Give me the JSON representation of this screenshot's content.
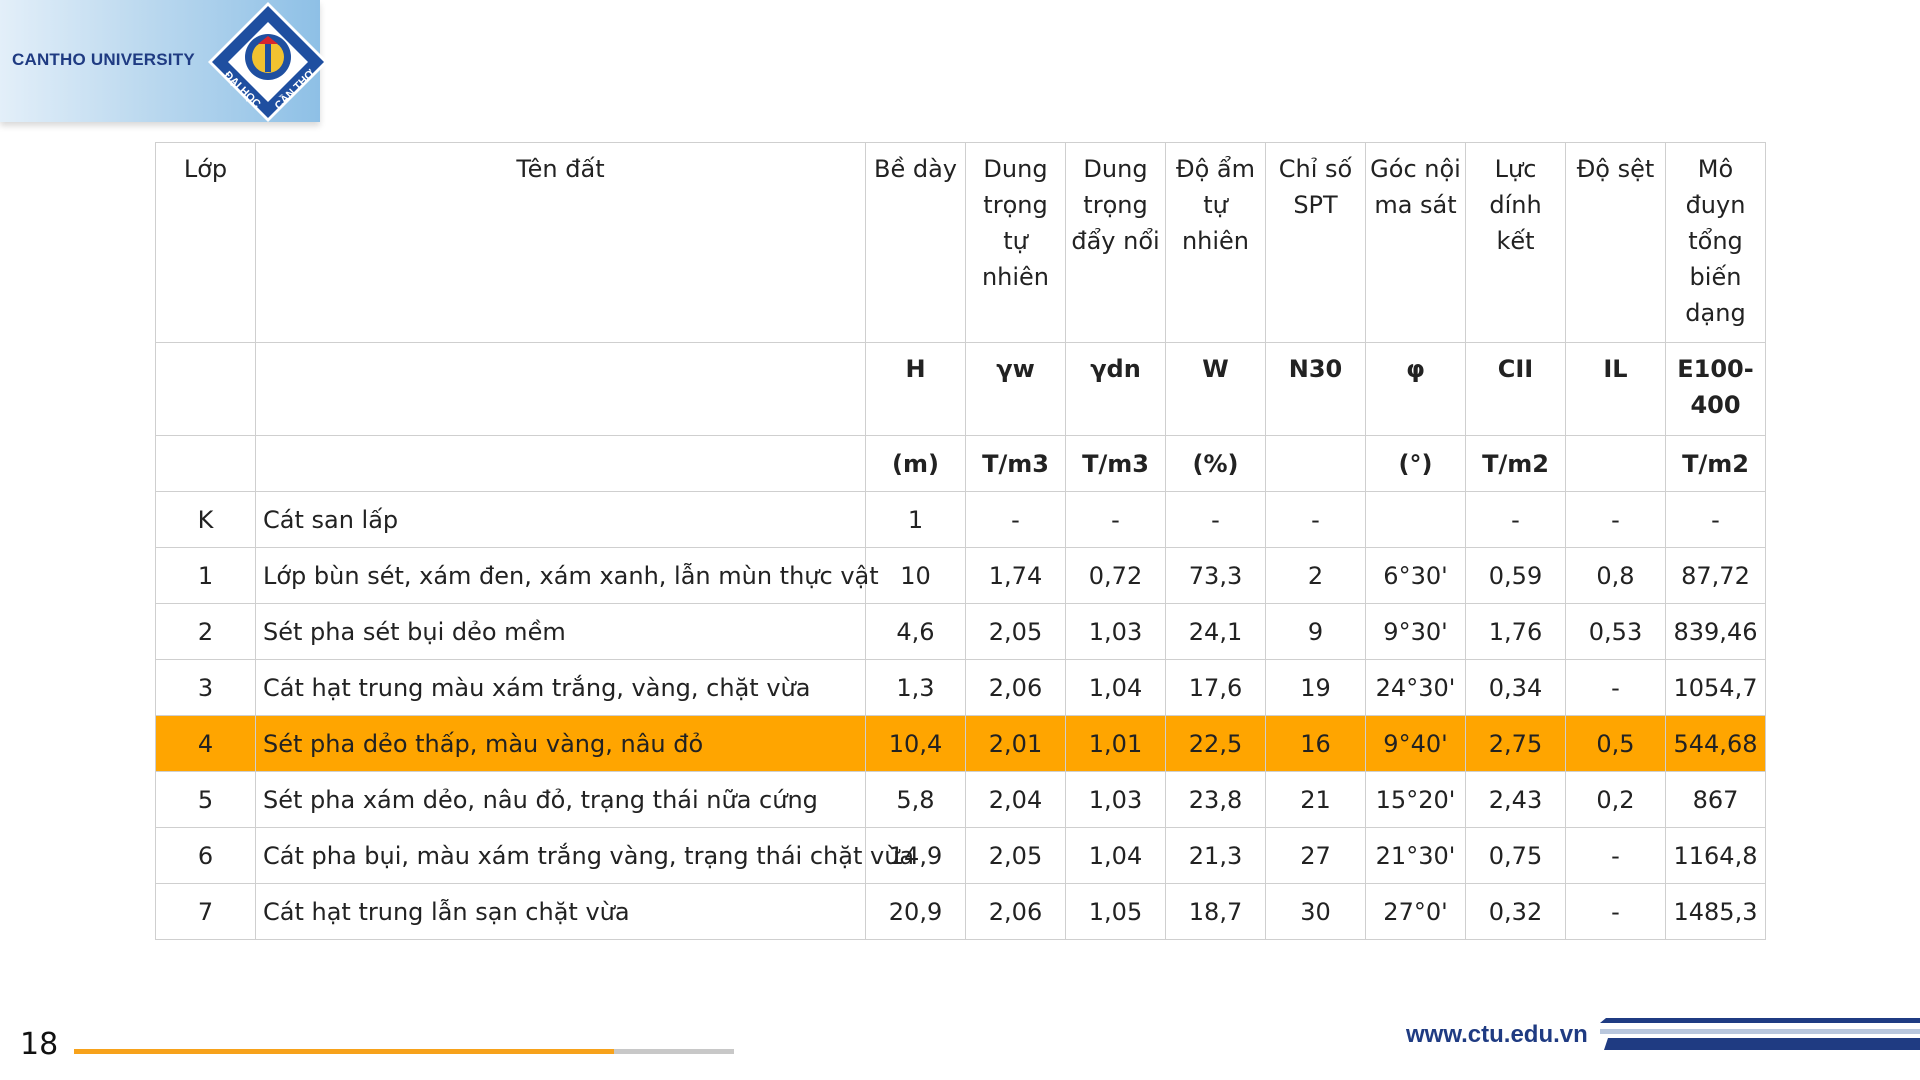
{
  "brand": {
    "name": "CANTHO UNIVERSITY",
    "logo_text_left": "ĐẠI HỌC",
    "logo_text_right": "CẦN THƠ"
  },
  "table": {
    "headers": [
      "Lớp",
      "Tên đất",
      "Bề dày",
      "Dung trọng tự nhiên",
      "Dung trọng đẩy nổi",
      "Độ ẩm tự nhiên",
      "Chỉ số SPT",
      "Góc nội ma sát",
      "Lực dính kết",
      "Độ sệt",
      "Mô đuyn tổng biến dạng"
    ],
    "symbols": [
      "",
      "",
      "H",
      "γw",
      "γdn",
      "W",
      "N30",
      "φ",
      "CII",
      "IL",
      "E100-400"
    ],
    "units": [
      "",
      "",
      "(m)",
      "T/m3",
      "T/m3",
      "(%)",
      "",
      "(°)",
      "T/m2",
      "",
      "T/m2"
    ],
    "rows": [
      [
        "K",
        "Cát san lấp",
        "1",
        "-",
        "-",
        "-",
        "-",
        "",
        "-",
        "-",
        "-"
      ],
      [
        "1",
        "Lớp bùn sét, xám đen, xám xanh, lẫn mùn thực vật",
        "10",
        "1,74",
        "0,72",
        "73,3",
        "2",
        "6°30'",
        "0,59",
        "0,8",
        "87,72"
      ],
      [
        "2",
        "Sét pha sét bụi dẻo mềm",
        "4,6",
        "2,05",
        "1,03",
        "24,1",
        "9",
        "9°30'",
        "1,76",
        "0,53",
        "839,46"
      ],
      [
        "3",
        "Cát hạt trung màu xám trắng, vàng, chặt vừa",
        "1,3",
        "2,06",
        "1,04",
        "17,6",
        "19",
        "24°30'",
        "0,34",
        "-",
        "1054,7"
      ],
      [
        "4",
        "Sét pha dẻo thấp, màu vàng, nâu đỏ",
        "10,4",
        "2,01",
        "1,01",
        "22,5",
        "16",
        "9°40'",
        "2,75",
        "0,5",
        "544,68"
      ],
      [
        "5",
        "Sét pha xám dẻo, nâu đỏ, trạng thái nữa cứng",
        "5,8",
        "2,04",
        "1,03",
        "23,8",
        "21",
        "15°20'",
        "2,43",
        "0,2",
        "867"
      ],
      [
        "6",
        "Cát pha bụi, màu xám trắng vàng, trạng thái chặt vừa",
        "14,9",
        "2,05",
        "1,04",
        "21,3",
        "27",
        "21°30'",
        "0,75",
        "-",
        "1164,8"
      ],
      [
        "7",
        "Cát hạt trung lẫn sạn chặt vừa",
        "20,9",
        "2,06",
        "1,05",
        "18,7",
        "30",
        "27°0'",
        "0,32",
        "-",
        "1485,3"
      ]
    ],
    "highlighted_row_index": 4,
    "highlight_color": "#ffa500"
  },
  "footer": {
    "page_number": "18",
    "progress_fraction": 0.818,
    "website": "www.ctu.edu.vn"
  },
  "colors": {
    "brand_blue": "#1f3b82",
    "progress_orange": "#f7a21b"
  }
}
